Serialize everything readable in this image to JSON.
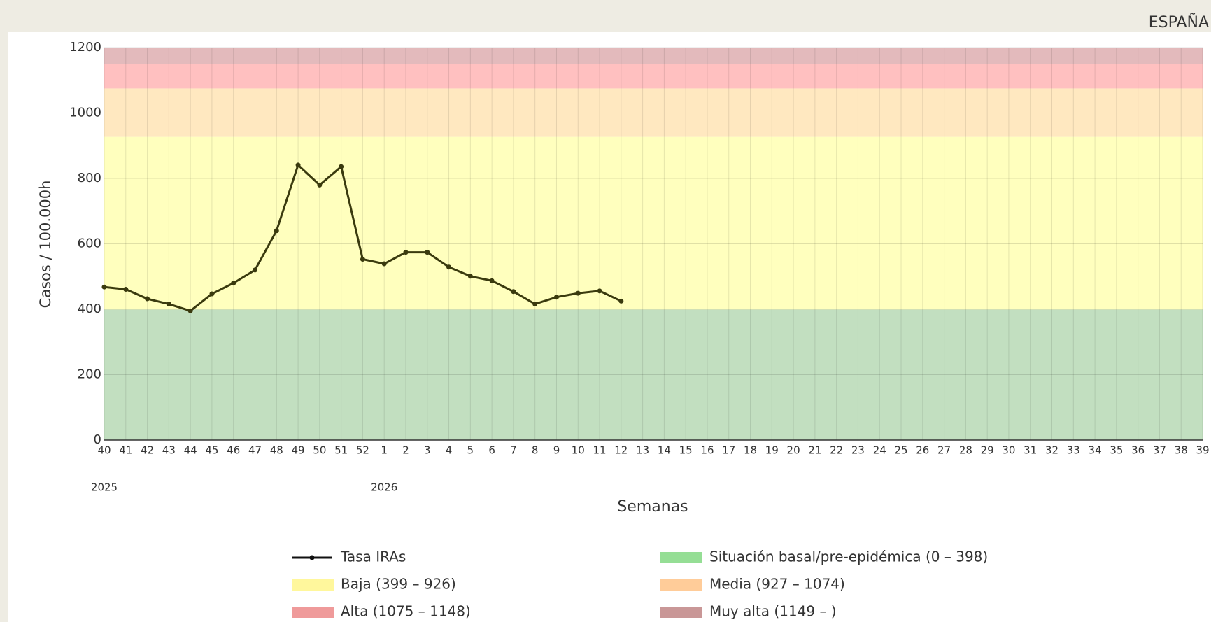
{
  "chart_data": {
    "type": "line",
    "region": "ESPAÑA",
    "ylabel": "Casos / 100.000h",
    "xlabel": "Semanas",
    "categories": [
      "40",
      "41",
      "42",
      "43",
      "44",
      "45",
      "46",
      "47",
      "48",
      "49",
      "50",
      "51",
      "52",
      "1",
      "2",
      "3",
      "4",
      "5",
      "6",
      "7",
      "8",
      "9",
      "10",
      "11",
      "12",
      "13",
      "14",
      "15",
      "16",
      "17",
      "18",
      "19",
      "20",
      "21",
      "22",
      "23",
      "24",
      "25",
      "26",
      "27",
      "28",
      "29",
      "30",
      "31",
      "32",
      "33",
      "34",
      "35",
      "36",
      "37",
      "38",
      "39"
    ],
    "x_groups": [
      {
        "label": "2025",
        "start": "40"
      },
      {
        "label": "2026",
        "start": "1"
      }
    ],
    "series": [
      {
        "name": "Tasa IRAs",
        "color": "#3a3a0e",
        "values": [
          468,
          461,
          432,
          416,
          395,
          447,
          480,
          520,
          640,
          841,
          780,
          836,
          553,
          539,
          574,
          574,
          529,
          501,
          487,
          454,
          416,
          437,
          449,
          456,
          425,
          null,
          null,
          null,
          null,
          null,
          null,
          null,
          null,
          null,
          null,
          null,
          null,
          null,
          null,
          null,
          null,
          null,
          null,
          null,
          null,
          null,
          null,
          null,
          null,
          null,
          null,
          null
        ]
      }
    ],
    "bands": [
      {
        "name": "Situación basal/pre-epidémica (0 – 398)",
        "from": 0,
        "color": "#c2dfc0",
        "swatch": "#95de95"
      },
      {
        "name": "Baja (399 – 926)",
        "from": 399,
        "color": "#ffffbe",
        "swatch": "#fff79c"
      },
      {
        "name": "Media (927 – 1074)",
        "from": 927,
        "color": "#ffe8c0",
        "swatch": "#ffcc99"
      },
      {
        "name": "Alta (1075 – 1148)",
        "from": 1075,
        "color": "#ffc0c0",
        "swatch": "#ef9a9a"
      },
      {
        "name": "Muy alta (1149 – )",
        "from": 1149,
        "color": "#e3babc",
        "swatch": "#c99797"
      }
    ],
    "ylim": [
      0,
      1200
    ],
    "yticks": [
      0,
      200,
      400,
      600,
      800,
      1000,
      1200
    ],
    "grid": true
  }
}
